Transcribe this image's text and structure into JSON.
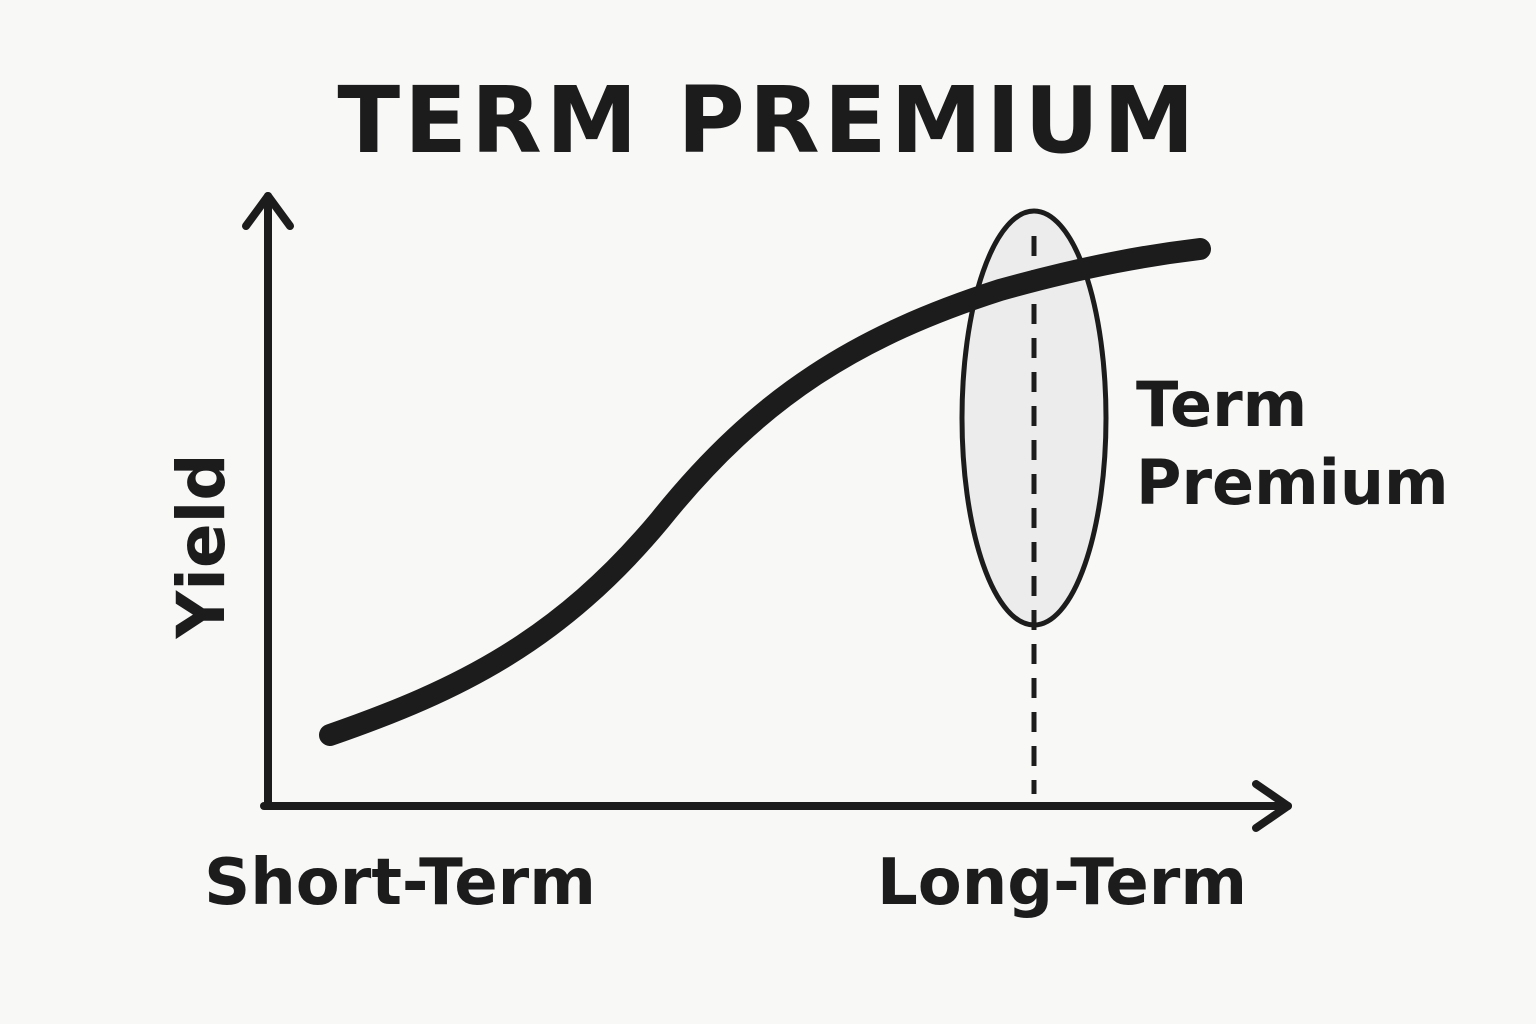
{
  "diagram": {
    "title": "TERM PREMIUM",
    "y_axis_label": "Yield",
    "x_axis_labels": {
      "start": "Short-Term",
      "end": "Long-Term"
    },
    "annotation": {
      "line1": "Term",
      "line2": "Premium"
    },
    "colors": {
      "ink": "#1c1c1c",
      "background": "#f8f8f7",
      "highlight_fill": "#ececec"
    },
    "shape": "upward-sloping S-shaped yield curve with a dashed vertical marker at the long end and an ellipse highlighting the term premium"
  }
}
